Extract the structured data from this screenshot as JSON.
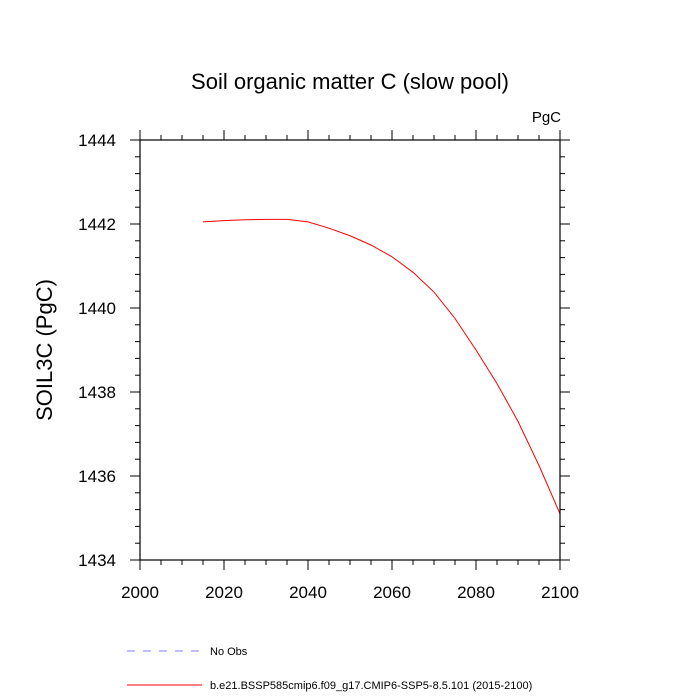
{
  "chart_data": {
    "type": "line",
    "title": "Soil organic matter C (slow pool)",
    "units_label": "PgC",
    "ylabel": "SOIL3C  (PgC)",
    "xlabel": "",
    "xlim": [
      2000,
      2100
    ],
    "ylim": [
      1434,
      1444
    ],
    "x_ticks": [
      2000,
      2020,
      2040,
      2060,
      2080,
      2100
    ],
    "x_tick_labels": [
      "2000",
      "2020",
      "2040",
      "2060",
      "2080",
      "2100"
    ],
    "y_ticks": [
      1434,
      1436,
      1438,
      1440,
      1442,
      1444
    ],
    "y_tick_labels": [
      "1434",
      "1436",
      "1438",
      "1440",
      "1442",
      "1444"
    ],
    "grid": false,
    "legend_position": "bottom",
    "series": [
      {
        "name": "b.e21.BSSP585cmip6.f09_g17.CMIP6-SSP5-8.5.101 (2015-2100)",
        "color": "#ff0000",
        "line_style": "solid",
        "x": [
          2015,
          2020,
          2025,
          2030,
          2035,
          2040,
          2045,
          2050,
          2055,
          2060,
          2065,
          2070,
          2075,
          2080,
          2085,
          2090,
          2095,
          2100
        ],
        "y": [
          1442.05,
          1442.08,
          1442.1,
          1442.11,
          1442.11,
          1442.05,
          1441.9,
          1441.72,
          1441.5,
          1441.22,
          1440.85,
          1440.38,
          1439.75,
          1439.0,
          1438.2,
          1437.3,
          1436.25,
          1435.1
        ]
      },
      {
        "name": "No Obs",
        "color": "#8080ff",
        "line_style": "dashed",
        "x": [],
        "y": []
      }
    ]
  }
}
